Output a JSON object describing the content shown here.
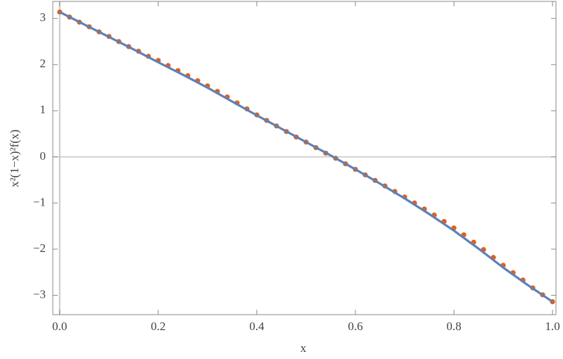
{
  "chart_data": {
    "type": "line",
    "x_label": "x",
    "y_label": "x²(1−x)²f(x)",
    "xlim": [
      -0.014,
      1.007
    ],
    "ylim": [
      -3.42,
      3.37
    ],
    "xticks": [
      {
        "value": 0,
        "label": "0.0"
      },
      0.2,
      0.4,
      0.6,
      0.8,
      {
        "value": 1,
        "label": "1.0"
      }
    ],
    "yticks": [
      {
        "value": -3,
        "label": "−3"
      },
      {
        "value": -2,
        "label": "−2"
      },
      {
        "value": -1,
        "label": "−1"
      },
      0,
      1,
      2,
      3
    ],
    "series": [
      {
        "type": "line",
        "color": "#5e81b5",
        "x": [
          0,
          0.05,
          0.1,
          0.15,
          0.2,
          0.25,
          0.3,
          0.35,
          0.4,
          0.45,
          0.5,
          0.55,
          0.6,
          0.65,
          0.7,
          0.75,
          0.8,
          0.85,
          0.9,
          0.95,
          1
        ],
        "values": [
          3.14,
          2.87,
          2.6,
          2.33,
          2.05,
          1.78,
          1.5,
          1.2,
          0.9,
          0.61,
          0.32,
          0.03,
          -0.27,
          -0.58,
          -0.9,
          -1.24,
          -1.6,
          -1.99,
          -2.4,
          -2.78,
          -3.14
        ]
      },
      {
        "type": "scatter",
        "color": "#e0611a",
        "x": [
          0,
          0.02,
          0.04,
          0.06,
          0.08,
          0.1,
          0.12,
          0.14,
          0.16,
          0.18,
          0.2,
          0.22,
          0.24,
          0.26,
          0.28,
          0.3,
          0.32,
          0.34,
          0.36,
          0.38,
          0.4,
          0.42,
          0.44,
          0.46,
          0.48,
          0.5,
          0.52,
          0.54,
          0.56,
          0.58,
          0.6,
          0.62,
          0.64,
          0.66,
          0.68,
          0.7,
          0.72,
          0.74,
          0.76,
          0.78,
          0.8,
          0.82,
          0.84,
          0.86,
          0.88,
          0.9,
          0.92,
          0.94,
          0.96,
          0.98,
          1
        ],
        "values": [
          3.14,
          3.03,
          2.92,
          2.82,
          2.71,
          2.61,
          2.5,
          2.39,
          2.29,
          2.18,
          2.09,
          1.98,
          1.87,
          1.76,
          1.65,
          1.54,
          1.42,
          1.3,
          1.17,
          1.04,
          0.91,
          0.79,
          0.67,
          0.55,
          0.43,
          0.32,
          0.2,
          0.08,
          -0.03,
          -0.15,
          -0.27,
          -0.39,
          -0.51,
          -0.63,
          -0.75,
          -0.87,
          -1.0,
          -1.13,
          -1.26,
          -1.4,
          -1.54,
          -1.69,
          -1.85,
          -2.01,
          -2.18,
          -2.35,
          -2.51,
          -2.67,
          -2.84,
          -2.99,
          -3.14
        ]
      }
    ]
  }
}
